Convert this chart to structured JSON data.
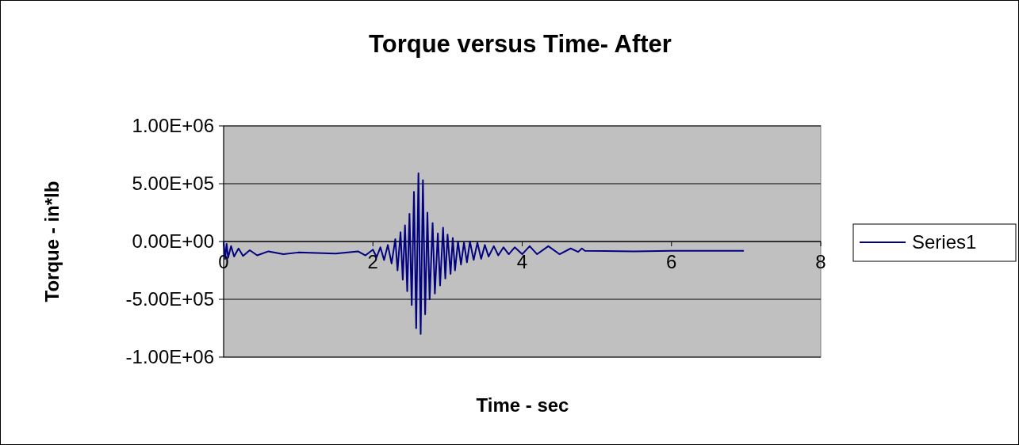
{
  "chart_data": {
    "type": "line",
    "title": "Torque versus Time- After",
    "xlabel": "Time - sec",
    "ylabel": "Torque - in*lb",
    "xlim": [
      0,
      8
    ],
    "xticks": [
      0,
      2,
      4,
      6,
      8
    ],
    "ylim": [
      -1000000,
      1000000
    ],
    "yticks": [
      {
        "value": -1000000,
        "label": "-1.00E+06"
      },
      {
        "value": -500000,
        "label": "-5.00E+05"
      },
      {
        "value": 0,
        "label": "0.00E+00"
      },
      {
        "value": 500000,
        "label": "5.00E+05"
      },
      {
        "value": 1000000,
        "label": "1.00E+06"
      }
    ],
    "grid": "y",
    "legend": "right",
    "marker": "none",
    "line_style": "solid",
    "series": [
      {
        "name": "Series1",
        "color": "#000080",
        "x": [
          0,
          0.02,
          0.04,
          0.06,
          0.1,
          0.14,
          0.2,
          0.26,
          0.35,
          0.45,
          0.6,
          0.8,
          1.0,
          1.5,
          1.8,
          1.9,
          2.0,
          2.05,
          2.1,
          2.15,
          2.2,
          2.25,
          2.3,
          2.33,
          2.37,
          2.4,
          2.43,
          2.46,
          2.49,
          2.52,
          2.55,
          2.58,
          2.61,
          2.64,
          2.67,
          2.7,
          2.73,
          2.76,
          2.8,
          2.83,
          2.87,
          2.9,
          2.94,
          2.97,
          3.0,
          3.04,
          3.07,
          3.1,
          3.14,
          3.18,
          3.22,
          3.26,
          3.3,
          3.35,
          3.4,
          3.45,
          3.5,
          3.55,
          3.62,
          3.68,
          3.75,
          3.82,
          3.9,
          4.0,
          4.1,
          4.2,
          4.35,
          4.5,
          4.65,
          4.75,
          4.8,
          4.84,
          5.5,
          6.0,
          6.97
        ],
        "values": [
          0,
          -150000,
          -20000,
          -140000,
          -40000,
          -130000,
          -60000,
          -125000,
          -75000,
          -120000,
          -85000,
          -110000,
          -95000,
          -105000,
          -85000,
          -120000,
          -70000,
          -135000,
          -50000,
          -160000,
          -30000,
          -190000,
          20000,
          -250000,
          80000,
          -330000,
          140000,
          -430000,
          240000,
          -550000,
          430000,
          -750000,
          590000,
          -800000,
          530000,
          -630000,
          250000,
          -500000,
          160000,
          -450000,
          70000,
          -380000,
          120000,
          -320000,
          60000,
          -280000,
          30000,
          -250000,
          0,
          -200000,
          -10000,
          -180000,
          0,
          -160000,
          -10000,
          -150000,
          -30000,
          -130000,
          -40000,
          -120000,
          -50000,
          -110000,
          -50000,
          -110000,
          -40000,
          -110000,
          -40000,
          -110000,
          -60000,
          -90000,
          -60000,
          -80000,
          -85000,
          -80000,
          -80000
        ]
      }
    ]
  }
}
